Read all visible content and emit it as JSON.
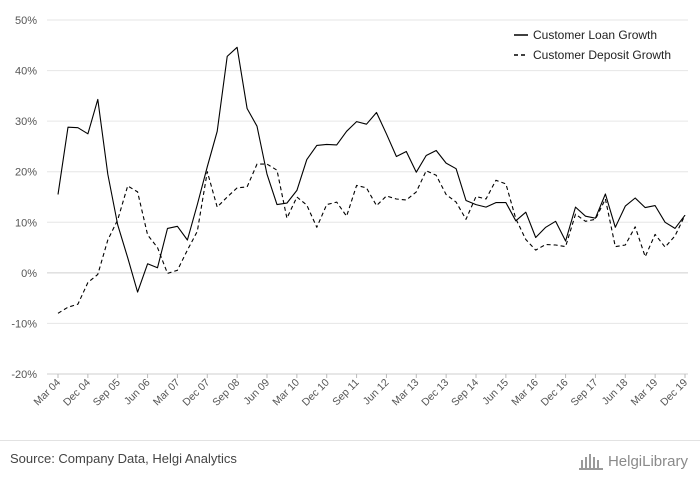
{
  "chart_data": {
    "type": "line",
    "title": "",
    "xlabel": "",
    "ylabel": "",
    "ylim": [
      -20,
      50
    ],
    "yticks": [
      -20,
      -10,
      0,
      10,
      20,
      30,
      40,
      50
    ],
    "ytick_labels": [
      "-20%",
      "-10%",
      "0%",
      "10%",
      "20%",
      "30%",
      "40%",
      "50%"
    ],
    "x_tick_labels": [
      "Mar 04",
      "Dec 04",
      "Sep 05",
      "Jun 06",
      "Mar 07",
      "Dec 07",
      "Sep 08",
      "Jun 09",
      "Mar 10",
      "Dec 10",
      "Sep 11",
      "Jun 12",
      "Mar 13",
      "Dec 13",
      "Sep 14",
      "Jun 15",
      "Mar 16",
      "Dec 16",
      "Sep 17",
      "Jun 18",
      "Mar 19",
      "Dec 19"
    ],
    "grid": "horizontal",
    "legend_position": "top-right",
    "series": [
      {
        "name": "Customer Loan Growth",
        "style": "solid",
        "values": [
          15.5,
          28.8,
          28.7,
          27.5,
          34.3,
          19.5,
          9.5,
          3.0,
          -3.8,
          1.8,
          1.0,
          8.8,
          9.2,
          6.5,
          13.5,
          21.0,
          28.0,
          42.8,
          44.6,
          32.5,
          29.0,
          19.5,
          13.5,
          13.8,
          16.3,
          22.4,
          25.2,
          25.4,
          25.3,
          28.0,
          29.9,
          29.4,
          31.7,
          27.5,
          23.0,
          24.0,
          19.9,
          23.2,
          24.2,
          21.7,
          20.6,
          14.3,
          13.5,
          13.0,
          13.9,
          13.9,
          10.3,
          12.0,
          7.0,
          9.0,
          10.2,
          6.3,
          13.0,
          11.2,
          10.8,
          15.6,
          9.0,
          13.2,
          14.8,
          12.9,
          13.3,
          10.0,
          8.8,
          11.4
        ]
      },
      {
        "name": "Customer Deposit Growth",
        "style": "dashed",
        "values": [
          -8.0,
          -6.8,
          -6.2,
          -1.9,
          -0.3,
          6.5,
          10.5,
          17.2,
          16.0,
          7.5,
          5.0,
          -0.1,
          0.5,
          4.5,
          8.2,
          20.0,
          13.0,
          15.0,
          16.8,
          17.0,
          21.5,
          21.5,
          20.3,
          10.8,
          15.0,
          13.4,
          9.0,
          13.5,
          14.0,
          11.2,
          17.3,
          16.8,
          13.3,
          15.2,
          14.6,
          14.4,
          16.0,
          20.2,
          19.3,
          15.5,
          14.0,
          10.6,
          15.1,
          14.6,
          18.3,
          17.6,
          10.7,
          6.6,
          4.5,
          5.6,
          5.5,
          5.2,
          11.6,
          10.2,
          10.6,
          14.6,
          5.2,
          5.5,
          9.1,
          3.2,
          7.6,
          5.1,
          7.3,
          11.4
        ]
      }
    ]
  },
  "footer": {
    "source": "Source: Company Data, Helgi Analytics",
    "logo_text": "HelgiLibrary"
  }
}
